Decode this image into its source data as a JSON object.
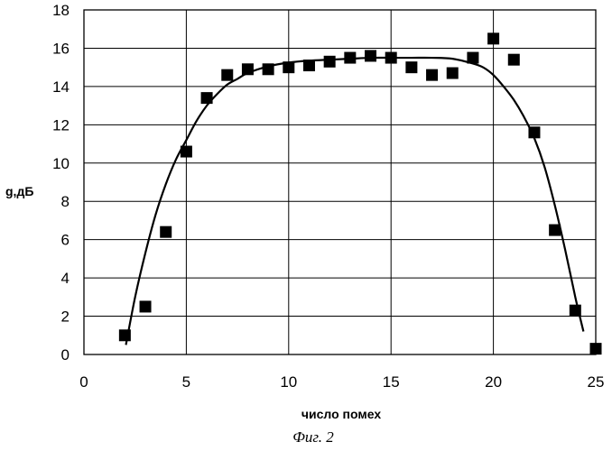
{
  "chart_data": {
    "type": "scatter",
    "xlabel": "число помех",
    "ylabel": "g,дБ",
    "caption": "Фиг. 2",
    "xlim": [
      0,
      25
    ],
    "ylim": [
      0,
      18
    ],
    "xticks": [
      0,
      5,
      10,
      15,
      20,
      25
    ],
    "yticks": [
      0,
      2,
      4,
      6,
      8,
      10,
      12,
      14,
      16,
      18
    ],
    "grid": true,
    "legend": "none",
    "series": [
      {
        "kind": "points",
        "marker": "square",
        "color": "#000000",
        "x": [
          2,
          3,
          4,
          5,
          6,
          7,
          8,
          9,
          10,
          11,
          12,
          13,
          14,
          15,
          16,
          17,
          18,
          19,
          20,
          21,
          22,
          23,
          24,
          25
        ],
        "y": [
          1.0,
          2.5,
          6.4,
          10.6,
          13.4,
          14.6,
          14.9,
          14.9,
          15.0,
          15.1,
          15.3,
          15.5,
          15.6,
          15.5,
          15.0,
          14.6,
          14.7,
          15.5,
          16.5,
          15.4,
          11.6,
          6.5,
          2.3,
          0.3
        ]
      },
      {
        "kind": "line",
        "color": "#000000",
        "x": [
          2.05,
          2.5,
          3,
          3.5,
          4,
          4.5,
          5,
          5.5,
          6,
          6.5,
          7,
          7.5,
          8,
          9,
          10,
          11,
          12,
          13,
          14,
          15,
          16,
          17,
          18,
          19,
          19.5,
          20,
          20.5,
          21,
          21.5,
          22,
          22.5,
          23,
          23.5,
          24,
          24.4
        ],
        "y": [
          0.5,
          3.0,
          5.3,
          7.3,
          8.9,
          10.2,
          11.2,
          12.2,
          13.0,
          13.6,
          14.1,
          14.4,
          14.7,
          15.05,
          15.25,
          15.35,
          15.4,
          15.45,
          15.5,
          15.5,
          15.5,
          15.5,
          15.45,
          15.2,
          15.0,
          14.6,
          14.0,
          13.3,
          12.4,
          11.3,
          9.8,
          7.8,
          5.5,
          3.0,
          1.2
        ]
      }
    ]
  }
}
